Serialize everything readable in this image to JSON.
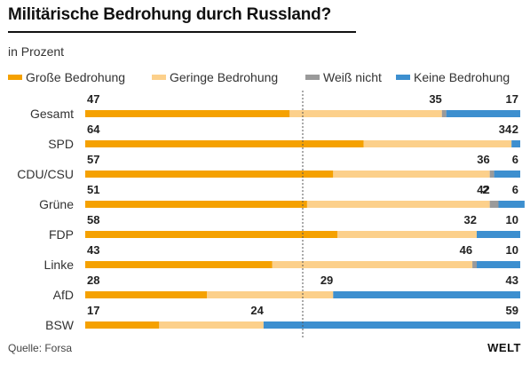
{
  "title": "Militärische Bedrohung durch Russland?",
  "subtitle": "in Prozent",
  "legend": [
    {
      "label": "Große Bedrohung",
      "color": "#f5a100"
    },
    {
      "label": "Geringe Bedrohung",
      "color": "#fcd08b"
    },
    {
      "label": "Weiß nicht",
      "color": "#9a9a9a"
    },
    {
      "label": "Keine Bedrohung",
      "color": "#3d8fcf"
    }
  ],
  "source": "Quelle: Forsa",
  "logo": "WELT",
  "chart_data": {
    "type": "bar",
    "orientation": "horizontal",
    "stacked": true,
    "xlim": [
      0,
      100
    ],
    "reference_line": 50,
    "categories": [
      "Gesamt",
      "SPD",
      "CDU/CSU",
      "Grüne",
      "FDP",
      "Linke",
      "AfD",
      "BSW"
    ],
    "series": [
      {
        "name": "Große Bedrohung",
        "color": "#f5a100",
        "values": [
          47,
          64,
          57,
          51,
          58,
          43,
          28,
          17
        ]
      },
      {
        "name": "Geringe Bedrohung",
        "color": "#fcd08b",
        "values": [
          35,
          34,
          36,
          42,
          32,
          46,
          29,
          24
        ]
      },
      {
        "name": "Weiß nicht",
        "color": "#9a9a9a",
        "values": [
          1,
          0,
          1,
          2,
          0,
          1,
          0,
          0
        ]
      },
      {
        "name": "Keine Bedrohung",
        "color": "#3d8fcf",
        "values": [
          17,
          2,
          6,
          6,
          10,
          10,
          43,
          59
        ]
      }
    ],
    "labels": [
      [
        "47",
        "35",
        "",
        "17"
      ],
      [
        "64",
        "34",
        "",
        "2"
      ],
      [
        "57",
        "36",
        "",
        "6"
      ],
      [
        "51",
        "42",
        "2",
        "6"
      ],
      [
        "58",
        "32",
        "",
        "10"
      ],
      [
        "43",
        "46",
        "",
        "10"
      ],
      [
        "28",
        "29",
        "",
        "43"
      ],
      [
        "17",
        "24",
        "",
        "59"
      ]
    ]
  }
}
